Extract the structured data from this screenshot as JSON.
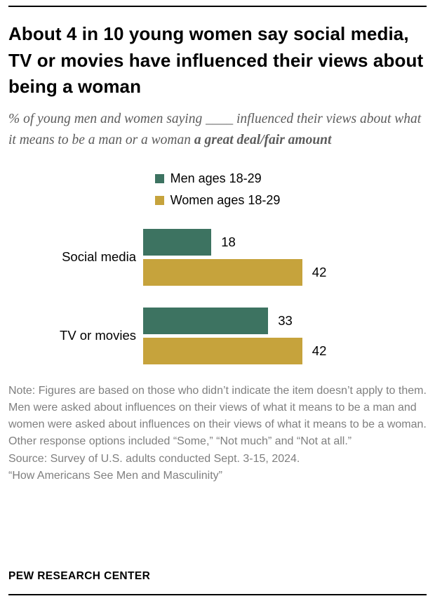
{
  "header": {
    "title": "About 4 in 10 young women say social media, TV or movies have influenced their views about being a woman",
    "subtitle_regular": "% of young men and women saying ____ influenced their views about what it means to be a man or a woman ",
    "subtitle_bold": "a great deal/fair amount"
  },
  "legend": [
    {
      "label": "Men ages 18-29",
      "color": "#3d7361"
    },
    {
      "label": "Women ages 18-29",
      "color": "#c6a33c"
    }
  ],
  "chart_data": {
    "type": "bar",
    "orientation": "horizontal",
    "categories": [
      "Social media",
      "TV or movies"
    ],
    "series": [
      {
        "name": "Men ages 18-29",
        "color": "#3d7361",
        "values": [
          18,
          33
        ]
      },
      {
        "name": "Women ages 18-29",
        "color": "#c6a33c",
        "values": [
          42,
          42
        ]
      }
    ],
    "xlim": [
      0,
      50
    ],
    "value_labels": true,
    "legend_position": "top"
  },
  "note": {
    "note_text": "Note: Figures are based on those who didn’t indicate the item doesn’t apply to them. Men were asked about influences on their views of what it means to be a man and women were asked about influences on their views of what it means to be a woman. Other response options included “Some,” “Not much” and “Not at all.”",
    "source_text": "Source: Survey of U.S. adults conducted Sept. 3-15, 2024.",
    "report_title": "“How Americans See Men and Masculinity”"
  },
  "footer": {
    "brand": "PEW RESEARCH CENTER"
  }
}
